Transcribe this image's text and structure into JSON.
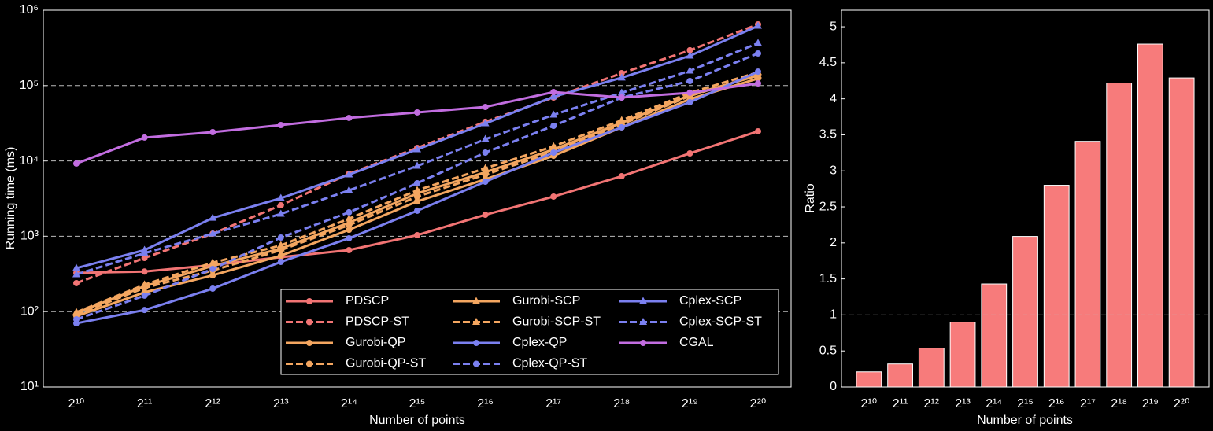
{
  "chart_data": [
    {
      "type": "line",
      "y_label": "Running time (ms)",
      "x_label": "Number of points",
      "categories": [
        "2¹⁰",
        "2¹¹",
        "2¹²",
        "2¹³",
        "2¹⁴",
        "2¹⁵",
        "2¹⁶",
        "2¹⁷",
        "2¹⁸",
        "2¹⁹",
        "2²⁰"
      ],
      "log_y": true,
      "grid": true,
      "legend": "lower right",
      "ylim": [
        10,
        1000000
      ],
      "yticks": [
        {
          "value": 10,
          "label": "10¹"
        },
        {
          "value": 100,
          "label": "10²"
        },
        {
          "value": 1000,
          "label": "10³"
        },
        {
          "value": 10000,
          "label": "10⁴"
        },
        {
          "value": 100000,
          "label": "10⁵"
        },
        {
          "value": 1000000,
          "label": "10⁶"
        }
      ],
      "series": [
        {
          "name": "PDSCP",
          "color": "#f27474",
          "style": "solid",
          "marker": "circle",
          "values": [
            326,
            340,
            415,
            527,
            655,
            1035,
            1930,
            3360,
            6270,
            12600,
            24700
          ]
        },
        {
          "name": "PDSCP-ST",
          "color": "#f27474",
          "style": "dashed",
          "marker": "circle",
          "values": [
            239,
            515,
            1084,
            2580,
            6740,
            14900,
            33000,
            69400,
            146000,
            294000,
            649000
          ]
        },
        {
          "name": "Gurobi-QP",
          "color": "#f4a660",
          "style": "solid",
          "marker": "circle",
          "values": [
            87,
            180,
            303,
            553,
            1220,
            2900,
            5700,
            11700,
            27900,
            66100,
            124000
          ]
        },
        {
          "name": "Gurobi-QP-ST",
          "color": "#f4a660",
          "style": "dashed",
          "marker": "circle",
          "values": [
            91,
            207,
            351,
            655,
            1410,
            3360,
            6580,
            13200,
            30600,
            72800,
            139000
          ]
        },
        {
          "name": "Gurobi-SCP",
          "color": "#f4a660",
          "style": "solid",
          "marker": "triangle",
          "values": [
            96,
            217,
            404,
            687,
            1520,
            3700,
            7080,
            14200,
            32100,
            74600,
            136000
          ]
        },
        {
          "name": "Gurobi-SCP-ST",
          "color": "#f4a660",
          "style": "dashed",
          "marker": "triangle",
          "values": [
            98,
            228,
            446,
            756,
            1710,
            4070,
            7980,
            15600,
            34600,
            80200,
            150000
          ]
        },
        {
          "name": "Cplex-QP",
          "color": "#7b80f0",
          "style": "solid",
          "marker": "circle",
          "values": [
            70,
            105,
            202,
            457,
            940,
            2180,
            5300,
            12900,
            27900,
            60100,
            153000
          ]
        },
        {
          "name": "Cplex-QP-ST",
          "color": "#7b80f0",
          "style": "dashed",
          "marker": "circle",
          "values": [
            79,
            163,
            368,
            962,
            2080,
            5060,
            12900,
            29200,
            69400,
            115000,
            267000
          ]
        },
        {
          "name": "Cplex-SCP",
          "color": "#7b80f0",
          "style": "solid",
          "marker": "triangle",
          "values": [
            377,
            655,
            1750,
            3200,
            6580,
            14200,
            31400,
            71100,
            127000,
            248000,
            618000
          ]
        },
        {
          "name": "Cplex-SCP-ST",
          "color": "#7b80f0",
          "style": "dashed",
          "marker": "triangle",
          "values": [
            311,
            596,
            1084,
            1980,
            4070,
            8570,
            19400,
            40900,
            80200,
            157000,
            365000
          ]
        },
        {
          "name": "CGAL",
          "color": "#c26de0",
          "style": "solid",
          "marker": "circle",
          "values": [
            9230,
            20400,
            24100,
            29900,
            37200,
            44000,
            52000,
            82000,
            69400,
            80200,
            107000
          ]
        }
      ]
    },
    {
      "type": "bar",
      "y_label": "Ratio",
      "x_label": "Number of points",
      "categories": [
        "2¹⁰",
        "2¹¹",
        "2¹²",
        "2¹³",
        "2¹⁴",
        "2¹⁵",
        "2¹⁶",
        "2¹⁷",
        "2¹⁸",
        "2¹⁹",
        "2²⁰"
      ],
      "values": [
        0.21,
        0.32,
        0.54,
        0.9,
        1.43,
        2.09,
        2.8,
        3.41,
        4.22,
        4.76,
        4.29
      ],
      "color": "#f77b7b",
      "ylim": [
        0,
        5.23
      ],
      "yticks": [
        0,
        0.5,
        1,
        1.5,
        2,
        2.5,
        3,
        3.5,
        4,
        4.5,
        5
      ],
      "reference_line": 1
    }
  ]
}
